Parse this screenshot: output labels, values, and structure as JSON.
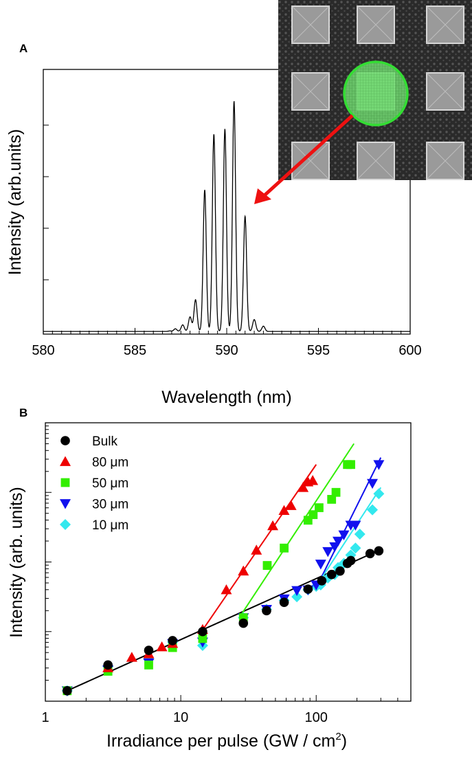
{
  "chart_data": [
    {
      "panel": "A",
      "type": "line",
      "xlabel": "Wavelength (nm)",
      "ylabel": "Intensity (arb.units)",
      "xlim": [
        580,
        600
      ],
      "ylim": [
        0,
        10
      ],
      "xticks": [
        "580",
        "585",
        "590",
        "595",
        "600"
      ],
      "peaks": {
        "x": [
          586.9,
          587.2,
          587.6,
          588.0,
          588.3,
          588.8,
          589.3,
          589.9,
          590.4,
          591.0,
          591.5,
          592.0
        ],
        "y": [
          0.12,
          0.2,
          0.35,
          0.65,
          1.3,
          5.45,
          7.55,
          7.75,
          8.8,
          4.45,
          0.55,
          0.3
        ]
      },
      "baseline": 0.1,
      "inset": {
        "description_icon": "sem-micropillar-array-icon",
        "highlight_color": "#33dd33",
        "arrow_color": "#ee1111"
      }
    },
    {
      "panel": "B",
      "type": "scatter",
      "scale": "log-log",
      "xlabel_main": "Irradiance per pulse (GW / cm",
      "xlabel_sup": "2",
      "xlabel_end": ")",
      "ylabel": "Intensity (arb. units)",
      "xlim": [
        1,
        500
      ],
      "ylim_decades": [
        0,
        4
      ],
      "xticks": [
        {
          "value": 1,
          "label": "1"
        },
        {
          "value": 10,
          "label": "10"
        },
        {
          "value": 100,
          "label": "100"
        }
      ],
      "series": [
        {
          "name": "Bulk",
          "marker": "circle",
          "color": "#000000",
          "x": [
            1.45,
            2.9,
            5.8,
            8.7,
            14.5,
            29,
            43,
            58,
            87,
            110,
            130,
            150,
            170,
            180,
            250,
            290
          ],
          "y": [
            0.15,
            0.52,
            0.73,
            0.87,
            1.0,
            1.12,
            1.3,
            1.42,
            1.61,
            1.73,
            1.82,
            1.87,
            1.98,
            2.02,
            2.12,
            2.16
          ],
          "fit": {
            "x": [
              1.45,
              300
            ],
            "y": [
              0.15,
              2.18
            ]
          }
        },
        {
          "name": "80 μm",
          "marker": "triangle-up",
          "color": "#ee0000",
          "x": [
            2.9,
            4.35,
            5.8,
            7.25,
            8.7,
            14.5,
            21.7,
            29,
            36.2,
            47.8,
            57.9,
            65.2,
            80,
            86.9,
            94.2
          ],
          "y": [
            0.48,
            0.63,
            0.68,
            0.78,
            0.83,
            1.03,
            1.6,
            1.87,
            2.17,
            2.52,
            2.74,
            2.81,
            3.07,
            3.15,
            3.17
          ],
          "fit": {
            "x": [
              14,
              100
            ],
            "y": [
              0.98,
              3.4
            ]
          }
        },
        {
          "name": "50 μm",
          "marker": "square",
          "color": "#33ee00",
          "x": [
            1.45,
            2.9,
            5.8,
            8.7,
            14.5,
            29,
            43.5,
            58,
            87,
            95,
            105,
            130,
            140,
            170,
            180
          ],
          "y": [
            0.15,
            0.43,
            0.52,
            0.77,
            0.9,
            1.2,
            1.95,
            2.2,
            2.6,
            2.68,
            2.78,
            2.9,
            3.0,
            3.4,
            3.4
          ],
          "fit": {
            "x": [
              27,
              190
            ],
            "y": [
              1.2,
              3.7
            ]
          }
        },
        {
          "name": "30 μm",
          "marker": "triangle-down",
          "color": "#1111ee",
          "x": [
            1.45,
            2.9,
            5.8,
            8.7,
            14.5,
            29,
            43,
            58,
            72,
            87,
            100,
            108,
            122,
            137,
            145,
            160,
            180,
            195,
            260,
            290
          ],
          "y": [
            0.15,
            0.45,
            0.55,
            0.83,
            0.85,
            1.2,
            1.32,
            1.47,
            1.59,
            1.6,
            1.67,
            1.97,
            2.15,
            2.22,
            2.3,
            2.39,
            2.53,
            2.53,
            3.13,
            3.4
          ],
          "fit": {
            "x": [
              100,
              300
            ],
            "y": [
              1.63,
              3.5
            ]
          }
        },
        {
          "name": "10 μm",
          "marker": "diamond",
          "color": "#33e8ee",
          "x": [
            1.45,
            2.9,
            5.8,
            8.7,
            14.5,
            29,
            43,
            58,
            72,
            87,
            100,
            108,
            122,
            137,
            145,
            160,
            180,
            195,
            210,
            260,
            290
          ],
          "y": [
            0.15,
            0.5,
            0.6,
            0.85,
            0.8,
            1.2,
            1.32,
            1.45,
            1.5,
            1.6,
            1.65,
            1.67,
            1.77,
            1.82,
            1.92,
            1.98,
            2.1,
            2.2,
            2.4,
            2.75,
            2.98
          ],
          "fit": {
            "x": [
              100,
              300
            ],
            "y": [
              1.65,
              3.07
            ]
          }
        }
      ]
    }
  ]
}
